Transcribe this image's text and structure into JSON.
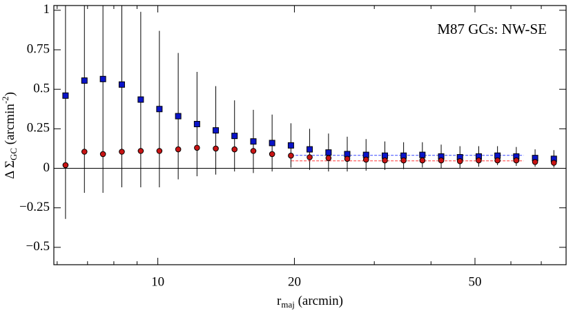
{
  "chart_data": {
    "type": "scatter",
    "title": "M87 GCs: NW-SE",
    "xlabel": [
      "r",
      "maj",
      " (arcmin)"
    ],
    "ylabel": [
      "Δ Σ",
      "GC",
      " (arcmin",
      "-2",
      ")"
    ],
    "xscale": "log",
    "xlim": [
      5.9,
      79.4
    ],
    "ylim": [
      -0.61,
      1.03
    ],
    "xticks": [
      10,
      20,
      50
    ],
    "xticks_minor": [
      6,
      7,
      8,
      9,
      30,
      40,
      60,
      70
    ],
    "yticks": [
      1,
      0.75,
      0.5,
      0.25,
      0,
      {
        "value": -0.25,
        "label": "−0.25"
      },
      {
        "value": -0.5,
        "label": "−0.5"
      }
    ],
    "x": [
      6.26,
      6.89,
      7.57,
      8.33,
      9.17,
      10.08,
      11.09,
      12.2,
      13.42,
      14.76,
      16.24,
      17.86,
      19.65,
      21.61,
      23.78,
      26.15,
      28.77,
      31.65,
      34.81,
      38.29,
      42.12,
      46.33,
      50.97,
      56.06,
      61.67,
      67.84,
      74.62
    ],
    "series": [
      {
        "marker": "square",
        "color": "#0a14c8",
        "values": [
          0.46,
          0.555,
          0.565,
          0.53,
          0.435,
          0.375,
          0.33,
          0.28,
          0.24,
          0.205,
          0.17,
          0.16,
          0.145,
          0.12,
          0.1,
          0.09,
          0.085,
          0.08,
          0.08,
          0.085,
          0.075,
          0.07,
          0.075,
          0.08,
          0.075,
          0.065,
          0.06
        ],
        "errors": [
          0.78,
          0.71,
          0.72,
          0.65,
          0.555,
          0.495,
          0.4,
          0.33,
          0.28,
          0.225,
          0.2,
          0.18,
          0.14,
          0.13,
          0.12,
          0.11,
          0.1,
          0.09,
          0.085,
          0.08,
          0.075,
          0.07,
          0.065,
          0.06,
          0.06,
          0.055,
          0.055
        ]
      },
      {
        "marker": "circle",
        "color": "#c81414",
        "values": [
          0.02,
          0.105,
          0.09,
          0.105,
          0.11,
          0.11,
          0.12,
          0.13,
          0.125,
          0.12,
          0.11,
          0.09,
          0.08,
          0.07,
          0.065,
          0.06,
          0.055,
          0.05,
          0.05,
          0.05,
          0.05,
          0.045,
          0.05,
          0.05,
          0.05,
          0.04,
          0.035
        ]
      }
    ],
    "hlines": [
      {
        "y": 0.082,
        "xmin": 19.7,
        "xmax": 64,
        "color": "#3344ff"
      },
      {
        "y": 0.047,
        "xmin": 19.7,
        "xmax": 64,
        "color": "#ff3333"
      }
    ]
  }
}
